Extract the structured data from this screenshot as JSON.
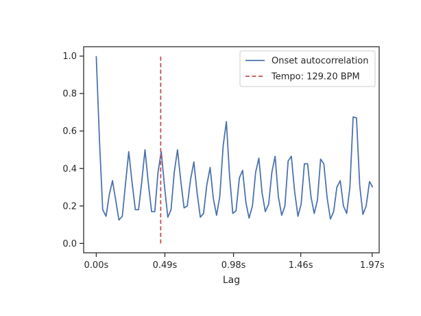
{
  "chart_data": {
    "type": "line",
    "title": "",
    "xlabel": "Lag",
    "ylabel": "",
    "xlim": [
      -0.09,
      2.02
    ],
    "ylim": [
      -0.05,
      1.05
    ],
    "x_ticks": [
      {
        "value": 0.0,
        "label": "0.00s"
      },
      {
        "value": 0.49,
        "label": "0.49s"
      },
      {
        "value": 0.98,
        "label": "0.98s"
      },
      {
        "value": 1.46,
        "label": "1.46s"
      },
      {
        "value": 1.97,
        "label": "1.97s"
      }
    ],
    "y_ticks": [
      {
        "value": 0.0,
        "label": "0.0"
      },
      {
        "value": 0.2,
        "label": "0.2"
      },
      {
        "value": 0.4,
        "label": "0.4"
      },
      {
        "value": 0.6,
        "label": "0.6"
      },
      {
        "value": 0.8,
        "label": "0.8"
      },
      {
        "value": 1.0,
        "label": "1.0"
      }
    ],
    "grid": false,
    "legend_position": "top-right",
    "series": [
      {
        "name": "Onset autocorrelation",
        "color": "#4c72b0",
        "style": "solid",
        "x": [
          0.0,
          0.023,
          0.046,
          0.07,
          0.093,
          0.116,
          0.139,
          0.162,
          0.186,
          0.209,
          0.232,
          0.255,
          0.279,
          0.302,
          0.325,
          0.348,
          0.372,
          0.395,
          0.418,
          0.441,
          0.464,
          0.488,
          0.511,
          0.534,
          0.557,
          0.58,
          0.604,
          0.627,
          0.65,
          0.673,
          0.697,
          0.72,
          0.743,
          0.766,
          0.789,
          0.813,
          0.836,
          0.859,
          0.882,
          0.906,
          0.929,
          0.952,
          0.975,
          0.998,
          1.022,
          1.045,
          1.068,
          1.091,
          1.115,
          1.138,
          1.161,
          1.184,
          1.207,
          1.231,
          1.254,
          1.277,
          1.3,
          1.324,
          1.347,
          1.37,
          1.393,
          1.416,
          1.44,
          1.463,
          1.486,
          1.509,
          1.533,
          1.556,
          1.579,
          1.602,
          1.625,
          1.649,
          1.672,
          1.695,
          1.718,
          1.742,
          1.765,
          1.788,
          1.811,
          1.834,
          1.858,
          1.881,
          1.904,
          1.927,
          1.951,
          1.974
        ],
        "y": [
          1.0,
          0.55,
          0.18,
          0.145,
          0.26,
          0.335,
          0.23,
          0.125,
          0.145,
          0.32,
          0.49,
          0.33,
          0.18,
          0.18,
          0.33,
          0.5,
          0.32,
          0.17,
          0.17,
          0.38,
          0.49,
          0.3,
          0.14,
          0.18,
          0.38,
          0.5,
          0.33,
          0.19,
          0.2,
          0.34,
          0.435,
          0.27,
          0.14,
          0.16,
          0.31,
          0.405,
          0.24,
          0.15,
          0.25,
          0.52,
          0.65,
          0.36,
          0.16,
          0.175,
          0.35,
          0.39,
          0.22,
          0.135,
          0.2,
          0.38,
          0.455,
          0.27,
          0.17,
          0.21,
          0.38,
          0.465,
          0.25,
          0.15,
          0.2,
          0.44,
          0.465,
          0.28,
          0.145,
          0.21,
          0.425,
          0.425,
          0.25,
          0.16,
          0.23,
          0.45,
          0.425,
          0.24,
          0.13,
          0.17,
          0.3,
          0.335,
          0.2,
          0.16,
          0.3,
          0.675,
          0.67,
          0.31,
          0.155,
          0.2,
          0.33,
          0.3
        ]
      },
      {
        "name": "Tempo: 129.20 BPM",
        "color": "#c44e52",
        "style": "dashed",
        "x": [
          0.46,
          0.46
        ],
        "y": [
          0.0,
          1.0
        ]
      }
    ]
  }
}
